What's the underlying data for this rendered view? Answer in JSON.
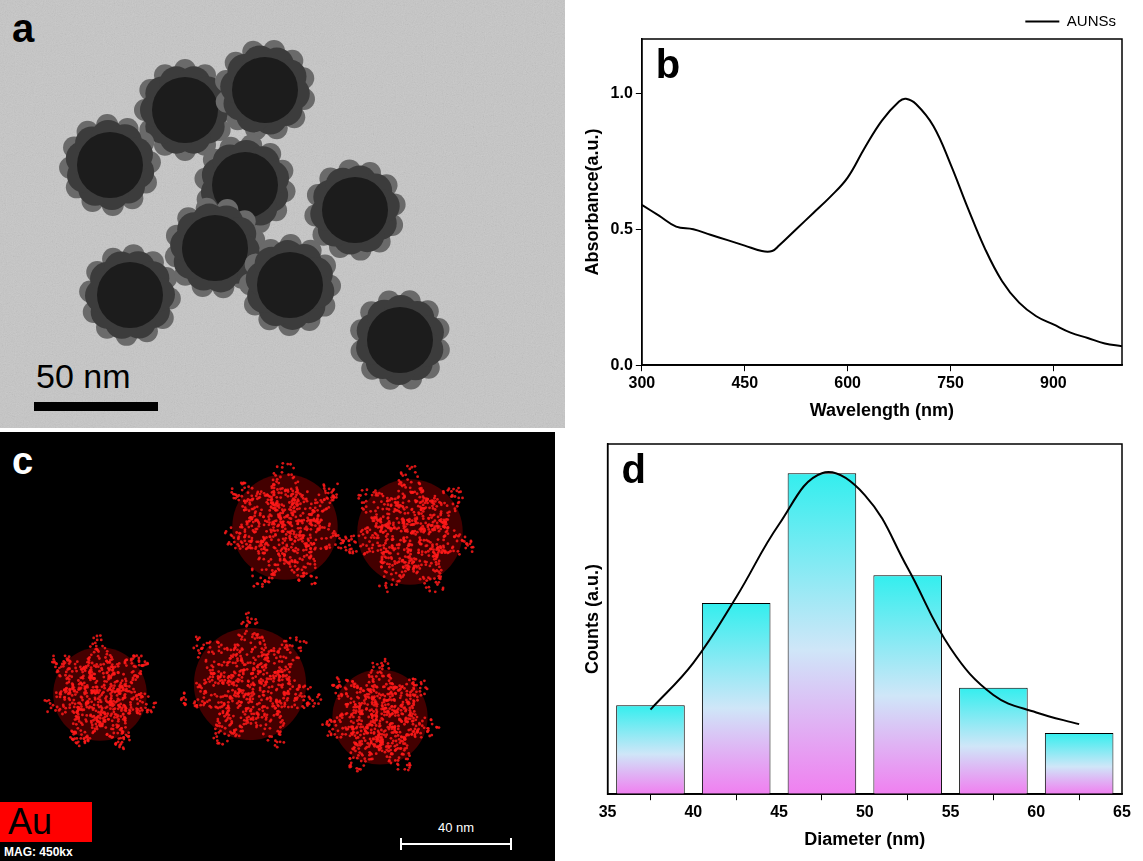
{
  "images": {
    "a": {
      "label": "a",
      "scale_bar": "50 nm"
    },
    "c": {
      "label": "c",
      "element": "Au",
      "scale_bar": "40 nm",
      "magnification": "MAG: 450kx"
    }
  },
  "chart_data": [
    {
      "label": "b",
      "type": "line",
      "x": [
        300,
        325,
        350,
        375,
        400,
        425,
        450,
        475,
        490,
        500,
        525,
        550,
        575,
        600,
        625,
        650,
        675,
        685,
        700,
        725,
        750,
        775,
        800,
        825,
        850,
        875,
        900,
        925,
        950,
        975,
        1000
      ],
      "series": [
        {
          "name": "AUNSs",
          "color": "#000000",
          "values": [
            0.59,
            0.55,
            0.51,
            0.5,
            0.48,
            0.46,
            0.44,
            0.42,
            0.42,
            0.44,
            0.5,
            0.56,
            0.62,
            0.69,
            0.8,
            0.9,
            0.97,
            0.98,
            0.96,
            0.88,
            0.74,
            0.58,
            0.43,
            0.31,
            0.23,
            0.18,
            0.15,
            0.12,
            0.1,
            0.08,
            0.07
          ]
        }
      ],
      "x_label": "Wavelength (nm)",
      "y_label": "Absorbance(a.u.)",
      "xlim": [
        300,
        1000
      ],
      "xticks": [
        300,
        450,
        600,
        750,
        900
      ],
      "ylim": [
        0,
        1.2
      ],
      "yticks": [
        {
          "value": 0,
          "label": "0.0"
        },
        {
          "value": 0.5,
          "label": "0.5"
        },
        {
          "value": 1,
          "label": "1.0"
        }
      ],
      "legend": "upper right",
      "grid": false
    },
    {
      "label": "d",
      "type": "histogram",
      "bins": [
        35,
        40,
        45,
        50,
        55,
        60,
        65
      ],
      "counts": [
        6.1,
        13.1,
        22,
        15,
        7.3,
        4.2
      ],
      "color": "#33eeee",
      "fit": {
        "x": [
          37.5,
          40,
          42.5,
          45,
          47.5,
          50,
          52.5,
          55,
          57.5,
          60,
          62.5
        ],
        "values": [
          5.8,
          9,
          13.5,
          18.5,
          22,
          20.5,
          15.5,
          10,
          6.8,
          5.6,
          4.8
        ],
        "color": "#000000"
      },
      "x_label": "Diameter (nm)",
      "y_label": "Counts (a.u.)",
      "xlim": [
        35,
        65
      ],
      "xticks": [
        35,
        40,
        45,
        50,
        55,
        60,
        65
      ],
      "ylim": [
        0,
        24
      ],
      "tick_labels": "x",
      "grid": false
    }
  ]
}
